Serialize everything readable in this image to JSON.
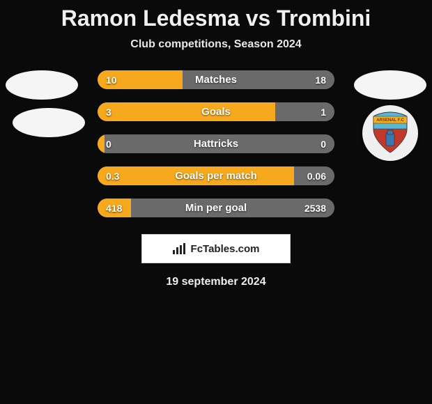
{
  "title": "Ramon Ledesma vs Trombini",
  "subtitle": "Club competitions, Season 2024",
  "date": "19 september 2024",
  "footer_brand": "FcTables.com",
  "colors": {
    "left_fill": "#f6a91d",
    "right_fill": "#6a6a6a",
    "bg": "#0a0a0a"
  },
  "club_badge": {
    "name": "Arsenal F.C.",
    "top_color": "#f0b020",
    "mid_color": "#5bb7d6",
    "bottom_color": "#c0392b"
  },
  "bars": [
    {
      "label": "Matches",
      "left_val": "10",
      "right_val": "18",
      "left_pct": 36,
      "right_pct": 64
    },
    {
      "label": "Goals",
      "left_val": "3",
      "right_val": "1",
      "left_pct": 75,
      "right_pct": 25
    },
    {
      "label": "Hattricks",
      "left_val": "0",
      "right_val": "0",
      "left_pct": 3,
      "right_pct": 3
    },
    {
      "label": "Goals per match",
      "left_val": "0.3",
      "right_val": "0.06",
      "left_pct": 83,
      "right_pct": 17
    },
    {
      "label": "Min per goal",
      "left_val": "418",
      "right_val": "2538",
      "left_pct": 14,
      "right_pct": 86
    }
  ]
}
